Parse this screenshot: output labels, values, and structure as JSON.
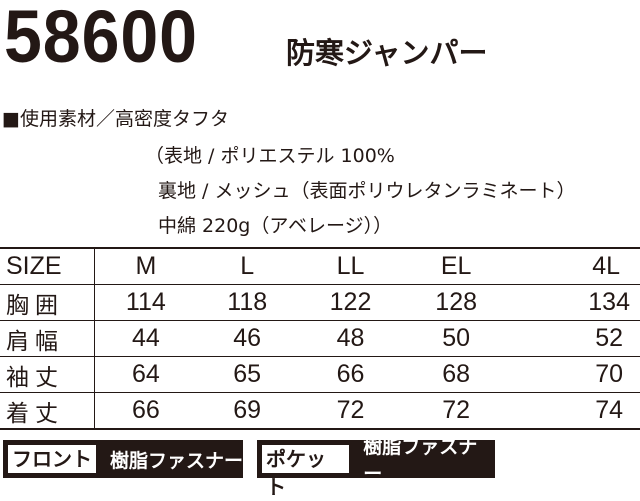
{
  "title": {
    "code": "58600",
    "name": "防寒ジャンパー"
  },
  "materials": {
    "line1": "■使用素材／高密度タフタ",
    "line2": "（表地 / ポリエステル 100%",
    "line3": "裏地 / メッシュ（表面ポリウレタンラミネート）",
    "line4": "中綿 220g（アベレージ））"
  },
  "size_table": {
    "header": [
      "SIZE",
      "M",
      "L",
      "LL",
      "EL",
      "4L"
    ],
    "rows": [
      {
        "label": "胸囲",
        "values": [
          "114",
          "118",
          "122",
          "128",
          "134"
        ]
      },
      {
        "label": "肩幅",
        "values": [
          "44",
          "46",
          "48",
          "50",
          "52"
        ]
      },
      {
        "label": "袖丈",
        "values": [
          "64",
          "65",
          "66",
          "68",
          "70"
        ]
      },
      {
        "label": "着丈",
        "values": [
          "66",
          "69",
          "72",
          "72",
          "74"
        ]
      }
    ]
  },
  "badges": [
    {
      "key": "フロント",
      "value": "樹脂ファスナー"
    },
    {
      "key": "ポケット",
      "value": "樹脂ファスナー"
    }
  ],
  "colors": {
    "ink": "#231815",
    "background": "#ffffff"
  }
}
